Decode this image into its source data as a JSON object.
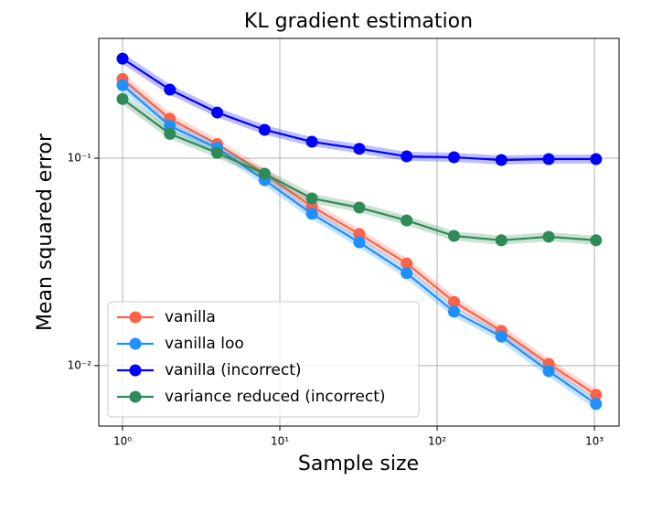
{
  "chart_data": {
    "type": "line",
    "title": "KL gradient estimation",
    "x_label": "Sample size",
    "y_label": "Mean squared error",
    "x": [
      1,
      2,
      4,
      8,
      16,
      32,
      64,
      128,
      256,
      512,
      1024
    ],
    "x_scale": "log",
    "y_scale": "log",
    "grid": true,
    "legend": "lower left",
    "xlim": [
      0.706,
      1435
    ],
    "ylim": [
      0.00511,
      0.378
    ],
    "xticks": [
      {
        "value": 1,
        "label": "10⁰"
      },
      {
        "value": 10,
        "label": "10¹"
      },
      {
        "value": 100,
        "label": "10²"
      },
      {
        "value": 1000,
        "label": "10³"
      }
    ],
    "yticks": [
      {
        "value": 0.01,
        "label": "10⁻²"
      },
      {
        "value": 0.1,
        "label": "10⁻¹"
      }
    ],
    "series": [
      {
        "name": "vanilla",
        "color": "#ff6347",
        "values": [
          0.241,
          0.155,
          0.117,
          0.0842,
          0.0584,
          0.0431,
          0.0311,
          0.0203,
          0.0147,
          0.0102,
          0.00723
        ]
      },
      {
        "name": "vanilla loo",
        "color": "#1e90ff",
        "values": [
          0.225,
          0.143,
          0.112,
          0.0784,
          0.0539,
          0.0393,
          0.0279,
          0.0182,
          0.0138,
          0.0094,
          0.00653
        ]
      },
      {
        "name": "vanilla (incorrect)",
        "color": "#0000ff",
        "values": [
          0.302,
          0.214,
          0.166,
          0.137,
          0.12,
          0.111,
          0.102,
          0.101,
          0.098,
          0.099,
          0.099
        ]
      },
      {
        "name": "variance reduced (incorrect)",
        "color": "#2e8b57",
        "values": [
          0.193,
          0.131,
          0.106,
          0.0842,
          0.064,
          0.0578,
          0.0501,
          0.0422,
          0.0402,
          0.0418,
          0.0402
        ]
      }
    ]
  }
}
